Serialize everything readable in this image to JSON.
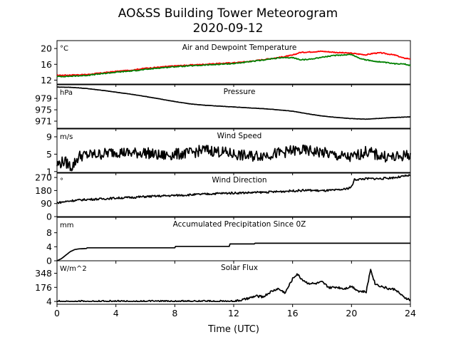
{
  "title": "AO&SS Building Tower Meteorogram",
  "subtitle": "2020-09-12",
  "xlabel": "Time (UTC)",
  "colors": {
    "line": "#000000",
    "air_temp": "#ff0000",
    "dewpoint": "#008000"
  },
  "chart_data": [
    {
      "type": "line",
      "title": "Air and Dewpoint Temperature",
      "unit": "°C",
      "xlim": [
        0,
        24
      ],
      "ylim": [
        11,
        22
      ],
      "yticks": [
        "12",
        "16",
        "20"
      ],
      "ytick_values": [
        12,
        16,
        20
      ],
      "x": [
        0,
        1,
        2,
        3,
        4,
        5,
        6,
        7,
        8,
        9,
        10,
        11,
        12,
        13,
        14,
        15,
        16,
        16.5,
        17,
        18,
        19,
        20,
        20.5,
        21,
        21.5,
        22,
        23,
        23.5,
        24
      ],
      "series": [
        {
          "values": [
            13.2,
            13.3,
            13.4,
            13.8,
            14.2,
            14.5,
            15.0,
            15.3,
            15.6,
            15.8,
            16.0,
            16.2,
            16.4,
            16.7,
            17.2,
            17.7,
            18.3,
            19.0,
            19.1,
            19.3,
            19.0,
            18.8,
            18.6,
            18.4,
            18.8,
            18.9,
            18.3,
            17.6,
            17.4
          ]
        },
        {
          "values": [
            12.9,
            13.0,
            13.2,
            13.6,
            14.0,
            14.3,
            14.7,
            15.1,
            15.4,
            15.6,
            15.8,
            16.0,
            16.2,
            16.6,
            17.1,
            17.6,
            17.7,
            17.2,
            17.2,
            17.8,
            18.3,
            18.5,
            17.6,
            17.1,
            16.8,
            16.6,
            16.1,
            16.2,
            15.7
          ]
        }
      ]
    },
    {
      "type": "line",
      "title": "Pressure",
      "unit": "hPa",
      "xlim": [
        0,
        24
      ],
      "ylim": [
        968.5,
        983.8
      ],
      "yticks": [
        "971",
        "975",
        "979"
      ],
      "ytick_values": [
        971,
        975,
        979
      ],
      "x": [
        0,
        1,
        2,
        3,
        4,
        5,
        6,
        7,
        8,
        9,
        10,
        11,
        12,
        13,
        14,
        15,
        16,
        17,
        18,
        19,
        20,
        21,
        22,
        23,
        24
      ],
      "series": [
        {
          "values": [
            983.0,
            982.9,
            982.5,
            981.9,
            981.2,
            980.5,
            979.7,
            978.8,
            977.9,
            977.1,
            976.6,
            976.3,
            976.0,
            975.7,
            975.4,
            975.0,
            974.5,
            973.6,
            972.8,
            972.3,
            971.9,
            971.7,
            972.0,
            972.3,
            972.5
          ]
        }
      ]
    },
    {
      "type": "line",
      "title": "Wind Speed",
      "unit": "m/s",
      "xlim": [
        0,
        24
      ],
      "ylim": [
        0.8,
        10.8
      ],
      "yticks": [
        "1",
        "5",
        "9"
      ],
      "ytick_values": [
        1,
        5,
        9
      ],
      "x": [
        0,
        0.5,
        1,
        1.5,
        2,
        3,
        4,
        5,
        6,
        7,
        8,
        9,
        10,
        11,
        12,
        13,
        14,
        15,
        16,
        17,
        18,
        19,
        20,
        21,
        22,
        23,
        24
      ],
      "series": [
        {
          "values": [
            2.6,
            3.4,
            2.0,
            4.6,
            4.8,
            5.0,
            5.6,
            5.2,
            5.4,
            4.6,
            5.0,
            5.2,
            6.0,
            5.6,
            5.0,
            4.5,
            4.8,
            5.2,
            5.8,
            5.8,
            5.4,
            4.6,
            4.2,
            5.6,
            4.6,
            4.2,
            5.0
          ]
        }
      ]
    },
    {
      "type": "line",
      "title": "Wind Direction",
      "unit": "°",
      "xlim": [
        0,
        24
      ],
      "ylim": [
        0,
        300
      ],
      "yticks": [
        "0",
        "90",
        "180",
        "270"
      ],
      "ytick_values": [
        0,
        90,
        180,
        270
      ],
      "x": [
        0,
        1,
        2,
        3,
        4,
        5,
        6,
        7,
        8,
        9,
        10,
        11,
        12,
        13,
        14,
        15,
        16,
        17,
        18,
        19,
        19.6,
        20,
        20.2,
        21,
        22,
        23,
        24
      ],
      "series": [
        {
          "values": [
            95,
            110,
            118,
            122,
            128,
            132,
            138,
            142,
            146,
            150,
            155,
            160,
            163,
            165,
            168,
            172,
            178,
            182,
            178,
            183,
            190,
            205,
            255,
            262,
            262,
            270,
            285
          ]
        }
      ]
    },
    {
      "type": "line",
      "title": "Accumulated Precipitation Since 0Z",
      "unit": "mm",
      "xlim": [
        0,
        24
      ],
      "ylim": [
        0,
        12.4
      ],
      "yticks": [
        "0",
        "4",
        "8"
      ],
      "ytick_values": [
        0,
        4,
        8
      ],
      "x": [
        0,
        0.3,
        0.6,
        0.9,
        1.2,
        1.5,
        2,
        2.05,
        8,
        8.05,
        11.7,
        11.75,
        13.4,
        13.45,
        24
      ],
      "series": [
        {
          "values": [
            0,
            0.6,
            1.6,
            2.6,
            3.2,
            3.4,
            3.5,
            3.7,
            3.7,
            4.1,
            4.1,
            4.8,
            4.8,
            5.0,
            5.0
          ]
        }
      ]
    },
    {
      "type": "line",
      "title": "Solar Flux",
      "unit": "W/m^2",
      "xlim": [
        0,
        24
      ],
      "ylim": [
        -30,
        500
      ],
      "yticks": [
        "4",
        "176",
        "348"
      ],
      "ytick_values": [
        4,
        176,
        348
      ],
      "x": [
        0,
        6,
        12,
        12.5,
        13,
        13.5,
        14,
        14.5,
        15,
        15.5,
        16,
        16.3,
        16.6,
        17,
        17.5,
        18,
        18.5,
        19,
        19.5,
        20,
        20.5,
        21,
        21.3,
        21.6,
        22,
        22.5,
        23,
        23.5,
        24
      ],
      "series": [
        {
          "values": [
            4,
            4,
            4,
            20,
            40,
            70,
            60,
            120,
            160,
            110,
            280,
            340,
            280,
            230,
            220,
            240,
            170,
            180,
            160,
            190,
            130,
            120,
            400,
            220,
            190,
            160,
            150,
            60,
            20
          ]
        }
      ]
    }
  ],
  "xticks": [
    "0",
    "4",
    "8",
    "12",
    "16",
    "20",
    "24"
  ],
  "xtick_values": [
    0,
    4,
    8,
    12,
    16,
    20,
    24
  ]
}
